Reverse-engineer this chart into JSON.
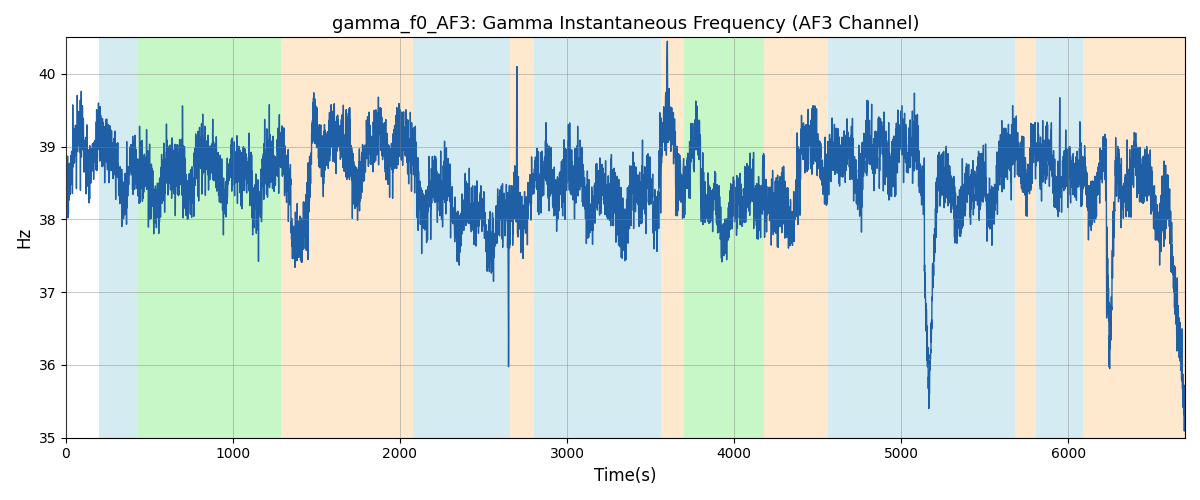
{
  "title": "gamma_f0_AF3: Gamma Instantaneous Frequency (AF3 Channel)",
  "xlabel": "Time(s)",
  "ylabel": "Hz",
  "xlim": [
    0,
    6700
  ],
  "ylim": [
    35,
    40.5
  ],
  "yticks": [
    35,
    36,
    37,
    38,
    39,
    40
  ],
  "line_color": "#1f5fa6",
  "line_width": 1.0,
  "bg_bands": [
    {
      "xmin": 200,
      "xmax": 430,
      "color": "#add8e6",
      "alpha": 0.5
    },
    {
      "xmin": 430,
      "xmax": 1290,
      "color": "#90ee90",
      "alpha": 0.5
    },
    {
      "xmin": 1290,
      "xmax": 2080,
      "color": "#ffd59e",
      "alpha": 0.5
    },
    {
      "xmin": 2080,
      "xmax": 2660,
      "color": "#add8e6",
      "alpha": 0.5
    },
    {
      "xmin": 2660,
      "xmax": 2800,
      "color": "#ffd59e",
      "alpha": 0.5
    },
    {
      "xmin": 2800,
      "xmax": 3560,
      "color": "#add8e6",
      "alpha": 0.5
    },
    {
      "xmin": 3560,
      "xmax": 3700,
      "color": "#ffd59e",
      "alpha": 0.5
    },
    {
      "xmin": 3700,
      "xmax": 4180,
      "color": "#90ee90",
      "alpha": 0.5
    },
    {
      "xmin": 4180,
      "xmax": 4560,
      "color": "#ffd59e",
      "alpha": 0.5
    },
    {
      "xmin": 4560,
      "xmax": 5680,
      "color": "#add8e6",
      "alpha": 0.5
    },
    {
      "xmin": 5680,
      "xmax": 5810,
      "color": "#ffd59e",
      "alpha": 0.5
    },
    {
      "xmin": 5810,
      "xmax": 6090,
      "color": "#add8e6",
      "alpha": 0.5
    },
    {
      "xmin": 6090,
      "xmax": 6700,
      "color": "#ffd59e",
      "alpha": 0.5
    }
  ],
  "figsize": [
    12,
    5
  ],
  "dpi": 100
}
